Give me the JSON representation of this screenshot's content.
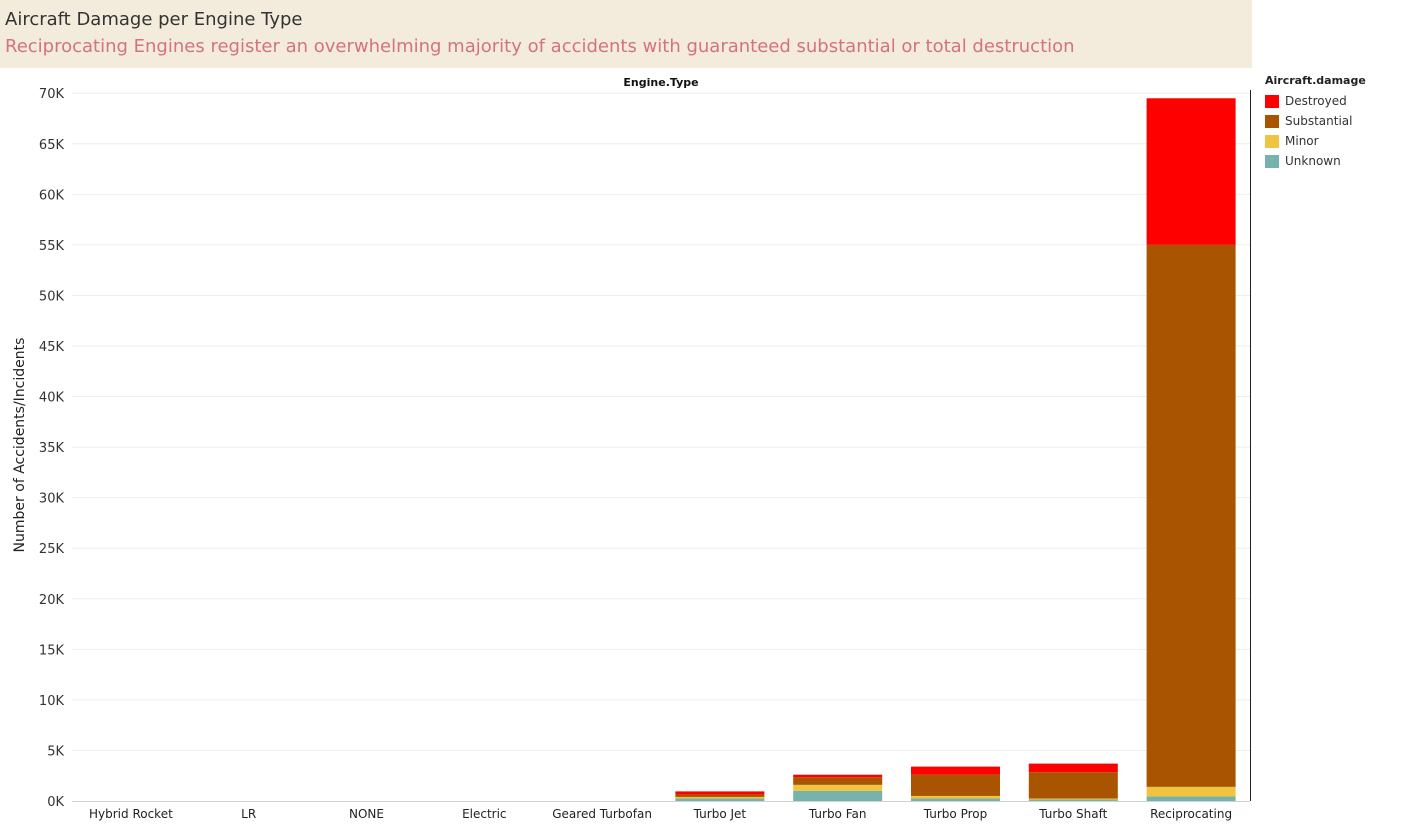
{
  "header": {
    "title": "Aircraft Damage per Engine Type",
    "subtitle": "Reciprocating Engines register an overwhelming majority of accidents with guaranteed substantial or total destruction",
    "subtitle_color": "#d4727f"
  },
  "legend": {
    "title": "Aircraft.damage",
    "items": [
      {
        "label": "Destroyed",
        "color": "#ff0000"
      },
      {
        "label": "Substantial",
        "color": "#a85400"
      },
      {
        "label": "Minor",
        "color": "#f0c340"
      },
      {
        "label": "Unknown",
        "color": "#76b3ae"
      }
    ]
  },
  "chart_data": {
    "type": "bar",
    "stacked": true,
    "title": "Aircraft Damage per Engine Type",
    "subtitle": "Reciprocating Engines register an overwhelming majority of accidents with guaranteed substantial or total destruction",
    "column_header": "Engine.Type",
    "xlabel": "",
    "ylabel": "Number of Accidents/Incidents",
    "ylim": [
      0,
      72000
    ],
    "yticks": [
      0,
      5000,
      10000,
      15000,
      20000,
      25000,
      30000,
      35000,
      40000,
      45000,
      50000,
      55000,
      60000,
      65000,
      70000
    ],
    "ytick_labels": [
      "0K",
      "5K",
      "10K",
      "15K",
      "20K",
      "25K",
      "30K",
      "35K",
      "40K",
      "45K",
      "50K",
      "55K",
      "60K",
      "65K",
      "70K"
    ],
    "grid": true,
    "legend_position": "right",
    "categories": [
      "Hybrid Rocket",
      "LR",
      "NONE",
      "Electric",
      "Geared Turbofan",
      "Turbo Jet",
      "Turbo Fan",
      "Turbo Prop",
      "Turbo Shaft",
      "Reciprocating"
    ],
    "series": [
      {
        "name": "Unknown",
        "color": "#76b3ae",
        "values": [
          0,
          0,
          0,
          0,
          0,
          250,
          1000,
          250,
          150,
          450
        ]
      },
      {
        "name": "Minor",
        "color": "#f0c340",
        "values": [
          0,
          0,
          0,
          0,
          0,
          150,
          600,
          250,
          100,
          950
        ]
      },
      {
        "name": "Substantial",
        "color": "#a85400",
        "values": [
          0,
          0,
          0,
          0,
          0,
          250,
          750,
          2100,
          2600,
          53600
        ]
      },
      {
        "name": "Destroyed",
        "color": "#ff0000",
        "values": [
          0,
          0,
          0,
          0,
          0,
          300,
          250,
          800,
          850,
          14500
        ]
      }
    ]
  }
}
